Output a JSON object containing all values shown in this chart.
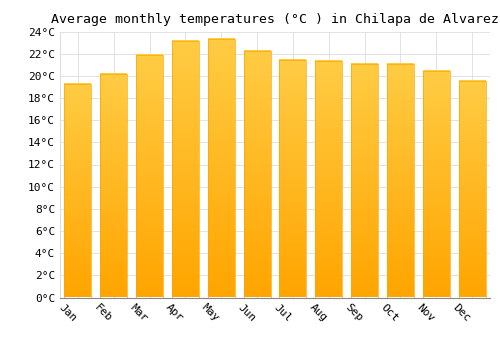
{
  "title": "Average monthly temperatures (°C ) in Chilapa de Alvarez",
  "months": [
    "Jan",
    "Feb",
    "Mar",
    "Apr",
    "May",
    "Jun",
    "Jul",
    "Aug",
    "Sep",
    "Oct",
    "Nov",
    "Dec"
  ],
  "values": [
    19.3,
    20.2,
    21.9,
    23.1,
    23.3,
    22.2,
    21.4,
    21.3,
    21.1,
    21.1,
    20.4,
    19.5
  ],
  "bar_color_top": "#FFCC44",
  "bar_color_bottom": "#FFA500",
  "bar_width": 0.75,
  "ylim": [
    0,
    24
  ],
  "yticks": [
    0,
    2,
    4,
    6,
    8,
    10,
    12,
    14,
    16,
    18,
    20,
    22,
    24
  ],
  "background_color": "#ffffff",
  "grid_color": "#dddddd",
  "title_fontsize": 9.5,
  "tick_fontsize": 8,
  "font_family": "monospace",
  "xlabel_rotation": -45
}
